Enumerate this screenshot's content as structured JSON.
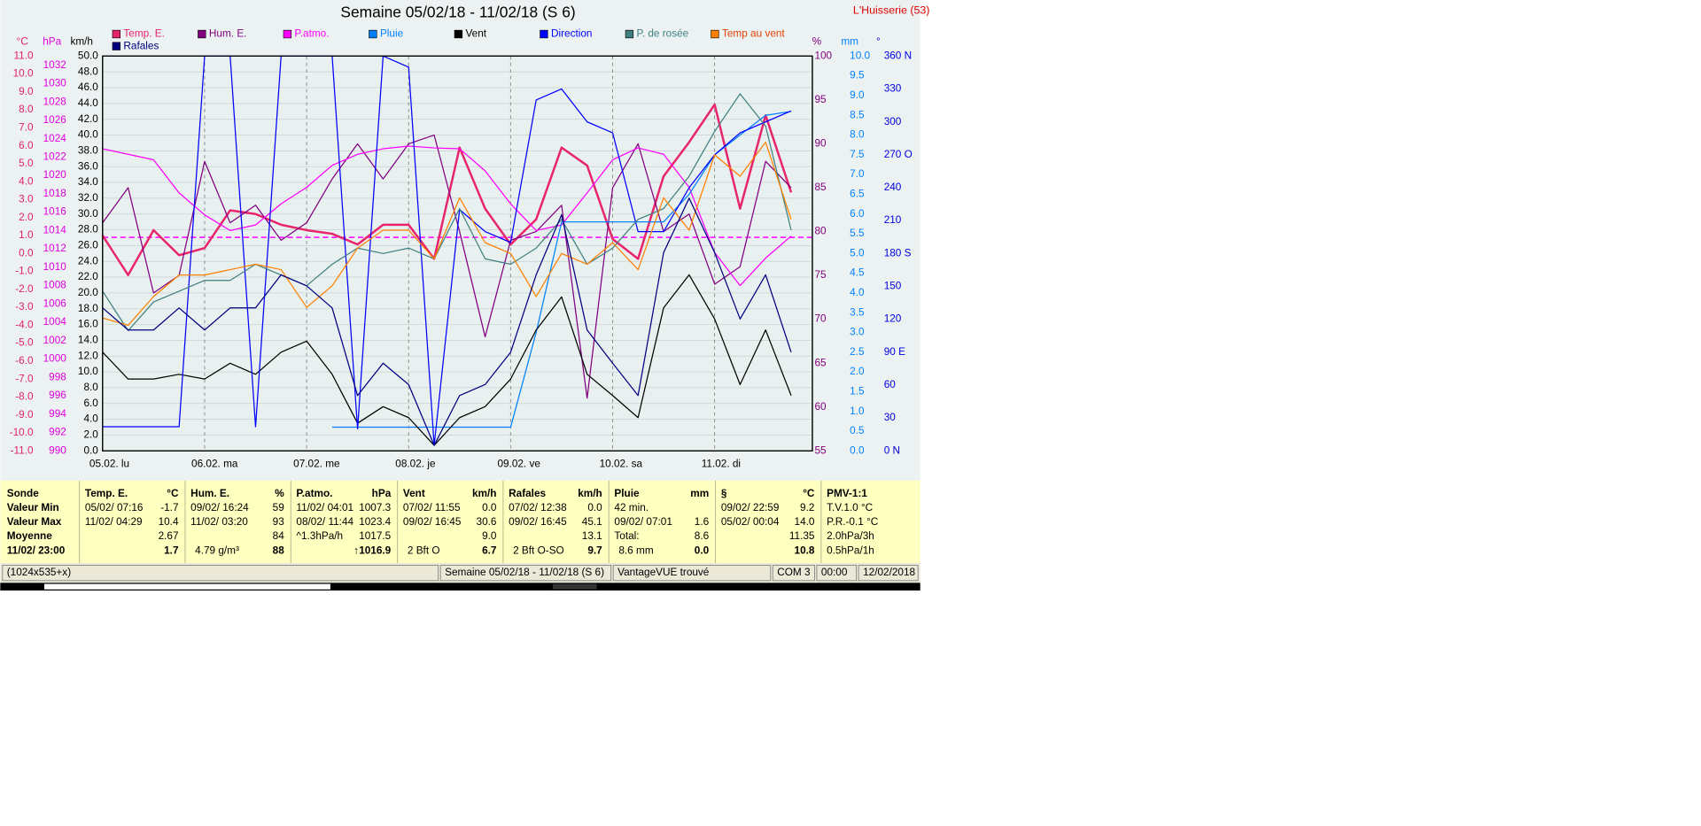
{
  "chart_data": {
    "type": "line",
    "title": "Semaine 05/02/18 - 11/02/18 (S 6)",
    "station": "L'Huisserie (53)",
    "x": [
      0,
      6,
      12,
      18,
      24,
      30,
      36,
      42,
      48,
      54,
      60,
      66,
      72,
      78,
      84,
      90,
      96,
      102,
      108,
      114,
      120,
      126,
      132,
      138,
      144,
      150,
      156,
      162
    ],
    "xlim": [
      0,
      167
    ],
    "xticks": [
      {
        "value": 0,
        "label": "05.02.  lu"
      },
      {
        "value": 24,
        "label": "06.02.  ma"
      },
      {
        "value": 48,
        "label": "07.02.  me"
      },
      {
        "value": 72,
        "label": "08.02.  je"
      },
      {
        "value": 96,
        "label": "09.02.  ve"
      },
      {
        "value": 120,
        "label": "10.02.  sa"
      },
      {
        "value": 144,
        "label": "11.02.  di"
      }
    ],
    "grid": true,
    "axes": {
      "temp": {
        "label": "°C",
        "color": "#e0206a",
        "side": "left",
        "lim": [
          -11,
          11
        ],
        "ticks": [
          {
            "value": -11,
            "label": "-11.0"
          },
          {
            "value": -10,
            "label": "-10.0"
          },
          {
            "value": -9,
            "label": "-9.0"
          },
          {
            "value": -8,
            "label": "-8.0"
          },
          {
            "value": -7,
            "label": "-7.0"
          },
          {
            "value": -6,
            "label": "-6.0"
          },
          {
            "value": -5,
            "label": "-5.0"
          },
          {
            "value": -4,
            "label": "-4.0"
          },
          {
            "value": -3,
            "label": "-3.0"
          },
          {
            "value": -2,
            "label": "-2.0"
          },
          {
            "value": -1,
            "label": "-1.0"
          },
          {
            "value": 0,
            "label": "0.0"
          },
          {
            "value": 1,
            "label": "1.0"
          },
          {
            "value": 2,
            "label": "2.0"
          },
          {
            "value": 3,
            "label": "3.0"
          },
          {
            "value": 4,
            "label": "4.0"
          },
          {
            "value": 5,
            "label": "5.0"
          },
          {
            "value": 6,
            "label": "6.0"
          },
          {
            "value": 7,
            "label": "7.0"
          },
          {
            "value": 8,
            "label": "8.0"
          },
          {
            "value": 9,
            "label": "9.0"
          },
          {
            "value": 10,
            "label": "10.0"
          },
          {
            "value": 11,
            "label": "11.0"
          }
        ]
      },
      "hpa": {
        "label": "hPa",
        "color": "#e000e0",
        "side": "left",
        "lim": [
          990,
          1033
        ],
        "ticks": [
          990,
          992,
          994,
          996,
          998,
          1000,
          1002,
          1004,
          1006,
          1008,
          1010,
          1012,
          1014,
          1016,
          1018,
          1020,
          1022,
          1024,
          1026,
          1028,
          1030,
          1032
        ]
      },
      "kmh": {
        "label": "km/h",
        "color": "#000000",
        "side": "left",
        "lim": [
          0,
          50
        ],
        "grid": true,
        "ticks": [
          {
            "value": 0,
            "label": "0.0"
          },
          {
            "value": 2,
            "label": "2.0"
          },
          {
            "value": 4,
            "label": "4.0"
          },
          {
            "value": 6,
            "label": "6.0"
          },
          {
            "value": 8,
            "label": "8.0"
          },
          {
            "value": 10,
            "label": "10.0"
          },
          {
            "value": 12,
            "label": "12.0"
          },
          {
            "value": 14,
            "label": "14.0"
          },
          {
            "value": 16,
            "label": "16.0"
          },
          {
            "value": 18,
            "label": "18.0"
          },
          {
            "value": 20,
            "label": "20.0"
          },
          {
            "value": 22,
            "label": "22.0"
          },
          {
            "value": 24,
            "label": "24.0"
          },
          {
            "value": 26,
            "label": "26.0"
          },
          {
            "value": 28,
            "label": "28.0"
          },
          {
            "value": 30,
            "label": "30.0"
          },
          {
            "value": 32,
            "label": "32.0"
          },
          {
            "value": 34,
            "label": "34.0"
          },
          {
            "value": 36,
            "label": "36.0"
          },
          {
            "value": 38,
            "label": "38.0"
          },
          {
            "value": 40,
            "label": "40.0"
          },
          {
            "value": 42,
            "label": "42.0"
          },
          {
            "value": 44,
            "label": "44.0"
          },
          {
            "value": 46,
            "label": "46.0"
          },
          {
            "value": 48,
            "label": "48.0"
          },
          {
            "value": 50,
            "label": "50.0"
          }
        ]
      },
      "pct": {
        "label": "%",
        "color": "#800080",
        "side": "right",
        "lim": [
          55,
          100
        ],
        "ticks": [
          55,
          60,
          65,
          70,
          75,
          80,
          85,
          90,
          95,
          100
        ]
      },
      "mm": {
        "label": "mm",
        "color": "#0080ff",
        "side": "right",
        "lim": [
          0,
          10
        ],
        "ticks": [
          {
            "value": 0,
            "label": "0.0"
          },
          0.5,
          {
            "value": 1,
            "label": "1.0"
          },
          1.5,
          {
            "value": 2,
            "label": "2.0"
          },
          2.5,
          {
            "value": 3,
            "label": "3.0"
          },
          3.5,
          {
            "value": 4,
            "label": "4.0"
          },
          4.5,
          {
            "value": 5,
            "label": "5.0"
          },
          5.5,
          {
            "value": 6,
            "label": "6.0"
          },
          6.5,
          {
            "value": 7,
            "label": "7.0"
          },
          7.5,
          {
            "value": 8,
            "label": "8.0"
          },
          8.5,
          {
            "value": 9,
            "label": "9.0"
          },
          9.5,
          {
            "value": 10,
            "label": "10.0"
          }
        ]
      },
      "deg": {
        "label": "°",
        "color": "#0000e0",
        "side": "right",
        "lim": [
          0,
          360
        ],
        "ticks": [
          {
            "value": 0,
            "label": "0   N"
          },
          30,
          60,
          {
            "value": 90,
            "label": "90  E"
          },
          120,
          150,
          {
            "value": 180,
            "label": "180 S"
          },
          210,
          240,
          {
            "value": 270,
            "label": "270 O"
          },
          300,
          330,
          {
            "value": 360,
            "label": "360 N"
          }
        ]
      }
    },
    "reference_line": {
      "axis": "hpa",
      "value": 1013.25,
      "color": "#ff00ff"
    },
    "series": [
      {
        "name": "Temp. E.",
        "color": "#e8246a",
        "axis": "temp",
        "width": 2,
        "values": [
          1.0,
          -1.2,
          1.3,
          -0.1,
          0.3,
          2.4,
          2.2,
          1.6,
          1.3,
          1.1,
          0.5,
          1.6,
          1.6,
          -0.3,
          5.9,
          2.5,
          0.5,
          1.9,
          5.9,
          4.9,
          0.8,
          -0.3,
          4.3,
          6.2,
          8.3,
          2.5,
          7.7,
          3.4
        ]
      },
      {
        "name": "Hum. E.",
        "color": "#800080",
        "axis": "pct",
        "width": 1,
        "values": [
          81,
          85,
          73,
          75,
          88,
          81,
          83,
          79,
          81,
          86,
          90,
          86,
          90,
          91,
          80,
          68,
          79,
          80,
          83,
          61,
          85,
          90,
          80,
          82,
          74,
          76,
          88,
          85
        ]
      },
      {
        "name": "P.atmo.",
        "color": "#ff00ff",
        "axis": "hpa",
        "width": 1,
        "values": [
          1022.9,
          1022.3,
          1021.7,
          1018.1,
          1015.7,
          1014.0,
          1014.6,
          1016.9,
          1018.7,
          1021.1,
          1022.3,
          1022.9,
          1023.2,
          1023.0,
          1022.9,
          1020.5,
          1016.9,
          1014.0,
          1014.6,
          1018.1,
          1021.7,
          1023.0,
          1022.3,
          1018.7,
          1011.6,
          1008.0,
          1011.0,
          1013.4
        ]
      },
      {
        "name": "Pluie",
        "color": "#0080ff",
        "axis": "mm",
        "width": 1,
        "values": [
          null,
          null,
          null,
          null,
          null,
          null,
          null,
          null,
          null,
          0.6,
          0.6,
          0.6,
          0.6,
          0.6,
          0.6,
          0.6,
          0.6,
          3.0,
          5.8,
          5.8,
          5.8,
          5.8,
          5.8,
          6.5,
          7.5,
          8.0,
          8.5,
          8.6
        ]
      },
      {
        "name": "Vent",
        "color": "#000000",
        "axis": "kmh",
        "width": 1,
        "values": [
          12.5,
          9.1,
          9.1,
          9.7,
          9.1,
          11.1,
          9.7,
          12.5,
          13.9,
          9.7,
          3.5,
          5.6,
          4.2,
          0.7,
          4.2,
          5.6,
          9.1,
          15.3,
          19.5,
          9.7,
          7.0,
          4.2,
          18.1,
          22.3,
          16.7,
          8.4,
          15.3,
          7.0
        ]
      },
      {
        "name": "Direction",
        "color": "#0000ff",
        "axis": "deg",
        "width": 1,
        "values": [
          22,
          22,
          22,
          22,
          360,
          360,
          22,
          360,
          360,
          360,
          20,
          360,
          350,
          5,
          220,
          200,
          190,
          320,
          330,
          300,
          290,
          200,
          200,
          240,
          270,
          290,
          300,
          310
        ]
      },
      {
        "name": "P. de rosée",
        "color": "#408080",
        "axis": "temp",
        "width": 1,
        "values": [
          -2.1,
          -4.3,
          -2.7,
          -2.1,
          -1.5,
          -1.5,
          -0.6,
          -1.2,
          -1.8,
          -0.6,
          0.3,
          0.0,
          0.3,
          -0.3,
          2.5,
          -0.3,
          -0.6,
          0.3,
          1.9,
          -0.6,
          0.3,
          1.9,
          2.5,
          4.3,
          6.8,
          8.9,
          7.1,
          1.3
        ]
      },
      {
        "name": "Temp au vent",
        "color": "#ff8000",
        "axis": "temp",
        "width": 1,
        "values": [
          -3.6,
          -4.0,
          -2.4,
          -1.2,
          -1.2,
          -0.9,
          -0.6,
          -0.9,
          -3.0,
          -1.8,
          0.3,
          1.3,
          1.3,
          -0.3,
          3.1,
          0.6,
          0.0,
          -2.4,
          0.0,
          -0.6,
          0.6,
          -0.9,
          3.1,
          1.3,
          5.5,
          4.3,
          6.2,
          1.9
        ]
      },
      {
        "name": "Rafales",
        "color": "#000080",
        "axis": "kmh",
        "width": 1,
        "values": [
          18.1,
          15.3,
          15.3,
          18.1,
          15.3,
          18.1,
          18.1,
          22.3,
          20.9,
          18.1,
          7.0,
          11.1,
          8.4,
          0.7,
          7.0,
          8.4,
          12.5,
          22.3,
          29.9,
          15.3,
          11.1,
          7.0,
          25.1,
          32.0,
          25.1,
          16.7,
          22.3,
          12.5
        ]
      }
    ]
  },
  "table": {
    "labels": [
      "Sonde",
      "Valeur Min",
      "Valeur Max",
      "Moyenne",
      "11/02/ 23:00"
    ],
    "columns": [
      {
        "header": "Temp. E.",
        "unit": "°C",
        "cells": [
          {
            "text": "05/02/  07:16",
            "value": "-1.7"
          },
          {
            "text": "11/02/  04:29",
            "value": "10.4"
          },
          {
            "value": "2.67"
          },
          {
            "value": "1.7"
          }
        ]
      },
      {
        "header": "Hum. E.",
        "unit": "%",
        "cells": [
          {
            "text": "09/02/  16:24",
            "value": "59"
          },
          {
            "text": "11/02/  03:20",
            "value": "93"
          },
          {
            "value": "84"
          },
          {
            "text": "4.79 g/m³",
            "value": "88"
          }
        ]
      },
      {
        "header": "P.atmo.",
        "unit": "hPa",
        "cells": [
          {
            "text": "11/02/ 04:01",
            "value": "1007.3"
          },
          {
            "text": "08/02/ 11:44",
            "value": "1023.4"
          },
          {
            "text": "^1.3hPa/h",
            "value": "1017.5"
          },
          {
            "value": "↑1016.9"
          }
        ]
      },
      {
        "header": "Vent",
        "unit": "km/h",
        "cells": [
          {
            "text": "07/02/  11:55",
            "value": "0.0"
          },
          {
            "text": "09/02/  16:45",
            "value": "30.6"
          },
          {
            "value": "9.0"
          },
          {
            "text": "2 Bft O",
            "value": "6.7"
          }
        ]
      },
      {
        "header": "Rafales",
        "unit": "km/h",
        "cells": [
          {
            "text": "07/02/  12:38",
            "value": "0.0"
          },
          {
            "text": "09/02/  16:45",
            "value": "45.1"
          },
          {
            "value": "13.1"
          },
          {
            "text": "2 Bft O-SO",
            "value": "9.7"
          }
        ]
      },
      {
        "header": "Pluie",
        "unit": "mm",
        "cells": [
          {
            "text": "42 min."
          },
          {
            "text": "09/02/  07:01",
            "value": "1.6"
          },
          {
            "text": "Total:",
            "value": "8.6"
          },
          {
            "text": "8.6 mm",
            "value": "0.0"
          }
        ]
      },
      {
        "header": "§",
        "unit": "°C",
        "cells": [
          {
            "text": "09/02/  22:59",
            "value": "9.2"
          },
          {
            "text": "05/02/  00:04",
            "value": "14.0"
          },
          {
            "value": "11.35"
          },
          {
            "value": "10.8"
          }
        ]
      },
      {
        "header": "PMV-1:1",
        "cells": [
          {
            "text": "T.V.1.0 °C"
          },
          {
            "text": "P.R.-0.1 °C"
          },
          {
            "text": "2.0hPa/3h"
          },
          {
            "text": "0.5hPa/1h"
          }
        ]
      }
    ]
  },
  "status_bar": [
    "(1024x535+x)",
    "Semaine 05/02/18 - 11/02/18 (S 6)",
    "VantageVUE trouvé",
    "COM 3",
    "00:00",
    "12/02/2018"
  ]
}
